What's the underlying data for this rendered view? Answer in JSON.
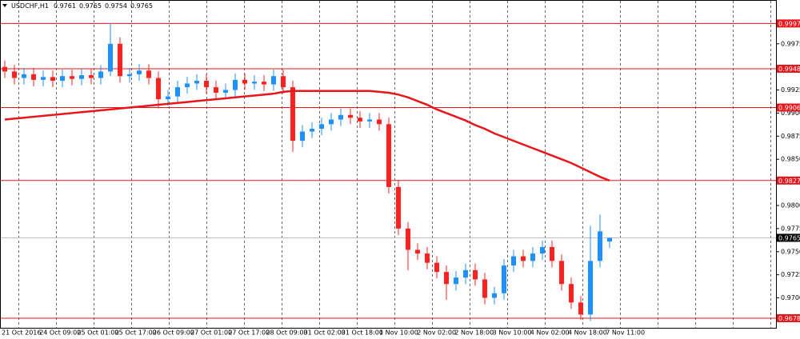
{
  "chart_data": {
    "type": "candlestick",
    "title": "USDCHF,H1",
    "header_values": [
      0.9761,
      0.9765,
      0.9754,
      0.9765
    ],
    "xtick_labels": [
      "21 Oct 2016",
      "24 Oct 09:00",
      "25 Oct 01:00",
      "25 Oct 17:00",
      "26 Oct 09:00",
      "27 Oct 01:00",
      "27 Oct 17:00",
      "28 Oct 09:00",
      "31 Oct 02:00",
      "31 Oct 18:00",
      "1 Nov 10:00",
      "2 Nov 02:00",
      "2 Nov 18:00",
      "3 Nov 10:00",
      "4 Nov 02:00",
      "4 Nov 18:00",
      "7 Nov 11:00"
    ],
    "open": [
      0.995,
      0.9945,
      0.9938,
      0.9942,
      0.9936,
      0.9939,
      0.9935,
      0.994,
      0.9937,
      0.9941,
      0.9938,
      0.9945,
      0.9975,
      0.994,
      0.9942,
      0.9946,
      0.9938,
      0.9915,
      0.9918,
      0.9928,
      0.9932,
      0.9935,
      0.9928,
      0.9922,
      0.9925,
      0.9936,
      0.9932,
      0.9934,
      0.9931,
      0.994,
      0.9928,
      0.987,
      0.988,
      0.9883,
      0.9888,
      0.9893,
      0.9898,
      0.9895,
      0.9891,
      0.9893,
      0.9888,
      0.982,
      0.9775,
      0.9752,
      0.9748,
      0.9738,
      0.9728,
      0.9715,
      0.9722,
      0.973,
      0.972,
      0.97,
      0.9705,
      0.9735,
      0.9745,
      0.974,
      0.9748,
      0.9755,
      0.974,
      0.9715,
      0.9695,
      0.9682,
      0.974,
      0.9761
    ],
    "high": [
      0.9957,
      0.9952,
      0.9949,
      0.9949,
      0.9946,
      0.9946,
      0.9947,
      0.9947,
      0.9948,
      0.9948,
      0.9952,
      0.9997,
      0.9982,
      0.9949,
      0.9953,
      0.9953,
      0.9945,
      0.9925,
      0.9935,
      0.9939,
      0.9942,
      0.9942,
      0.9935,
      0.9932,
      0.9943,
      0.9943,
      0.9941,
      0.9941,
      0.9947,
      0.9947,
      0.9935,
      0.9887,
      0.989,
      0.9895,
      0.99,
      0.9905,
      0.9905,
      0.9902,
      0.99,
      0.99,
      0.9895,
      0.9827,
      0.9782,
      0.9759,
      0.9755,
      0.9745,
      0.9735,
      0.9729,
      0.9737,
      0.9737,
      0.9727,
      0.9712,
      0.9742,
      0.9752,
      0.9752,
      0.9755,
      0.9762,
      0.9762,
      0.9747,
      0.9722,
      0.9702,
      0.9778,
      0.979,
      0.9765
    ],
    "low": [
      0.9938,
      0.9931,
      0.9931,
      0.9929,
      0.9929,
      0.9928,
      0.9928,
      0.993,
      0.993,
      0.9931,
      0.9931,
      0.994,
      0.9933,
      0.9933,
      0.9935,
      0.9931,
      0.9905,
      0.9908,
      0.9911,
      0.9921,
      0.9925,
      0.9921,
      0.9915,
      0.9915,
      0.9918,
      0.9925,
      0.9925,
      0.9924,
      0.9924,
      0.9921,
      0.9858,
      0.9863,
      0.9873,
      0.9876,
      0.9881,
      0.9886,
      0.9888,
      0.9884,
      0.9884,
      0.9881,
      0.9813,
      0.9768,
      0.973,
      0.9741,
      0.9731,
      0.9721,
      0.9698,
      0.9708,
      0.9715,
      0.9713,
      0.9693,
      0.9693,
      0.9698,
      0.9728,
      0.9733,
      0.9733,
      0.9741,
      0.9733,
      0.9708,
      0.9688,
      0.9676,
      0.9675,
      0.9733,
      0.9754
    ],
    "close": [
      0.9945,
      0.9938,
      0.9942,
      0.9936,
      0.9939,
      0.9935,
      0.994,
      0.9937,
      0.9941,
      0.9938,
      0.9945,
      0.9975,
      0.994,
      0.9942,
      0.9946,
      0.9938,
      0.9915,
      0.9918,
      0.9928,
      0.9932,
      0.9935,
      0.9928,
      0.9922,
      0.9925,
      0.9936,
      0.9932,
      0.9934,
      0.9931,
      0.994,
      0.9928,
      0.987,
      0.988,
      0.9883,
      0.9888,
      0.9893,
      0.9898,
      0.9895,
      0.9891,
      0.9893,
      0.9888,
      0.982,
      0.9775,
      0.9752,
      0.9748,
      0.9738,
      0.9728,
      0.9715,
      0.9722,
      0.973,
      0.972,
      0.97,
      0.9705,
      0.9735,
      0.9745,
      0.974,
      0.9748,
      0.9755,
      0.974,
      0.9715,
      0.9695,
      0.9682,
      0.974,
      0.9772,
      0.9765
    ],
    "up_color": "#1e90ff",
    "down_color": "#ff2020",
    "ma": {
      "color": "#e8161b",
      "values": [
        0.9893,
        0.9894,
        0.9895,
        0.9896,
        0.9897,
        0.9898,
        0.9899,
        0.99,
        0.9901,
        0.9902,
        0.9903,
        0.9904,
        0.9905,
        0.9906,
        0.9907,
        0.9908,
        0.9909,
        0.991,
        0.9911,
        0.9912,
        0.9913,
        0.9914,
        0.9915,
        0.9916,
        0.9917,
        0.9918,
        0.9919,
        0.992,
        0.9921,
        0.9923,
        0.9924,
        0.9924,
        0.9924,
        0.9924,
        0.9924,
        0.9924,
        0.9924,
        0.9924,
        0.9924,
        0.9923,
        0.9922,
        0.992,
        0.9917,
        0.9913,
        0.9909,
        0.9904,
        0.99,
        0.9896,
        0.9892,
        0.9887,
        0.9883,
        0.9878,
        0.9874,
        0.987,
        0.9866,
        0.9862,
        0.9858,
        0.9854,
        0.985,
        0.9846,
        0.9841,
        0.9836,
        0.9831,
        0.9827
      ]
    },
    "levels": {
      "color": "#e8161b",
      "values": [
        0.9997,
        0.9948,
        0.9906,
        0.9827,
        0.9678
      ]
    },
    "last_price": 0.9765,
    "ylim": [
      0.96676,
      1.00224
    ],
    "yticks": [
      0.9975,
      0.9925,
      {
        "value": 0.99,
        "label": "0.9900"
      },
      0.9875,
      {
        "value": 0.985,
        "label": "0.9850"
      },
      {
        "value": 0.98,
        "label": "0.9800"
      },
      0.9775,
      {
        "value": 0.975,
        "label": "0.9750"
      },
      0.9725,
      {
        "value": 0.97,
        "label": "0.9700"
      }
    ],
    "grid": true
  }
}
